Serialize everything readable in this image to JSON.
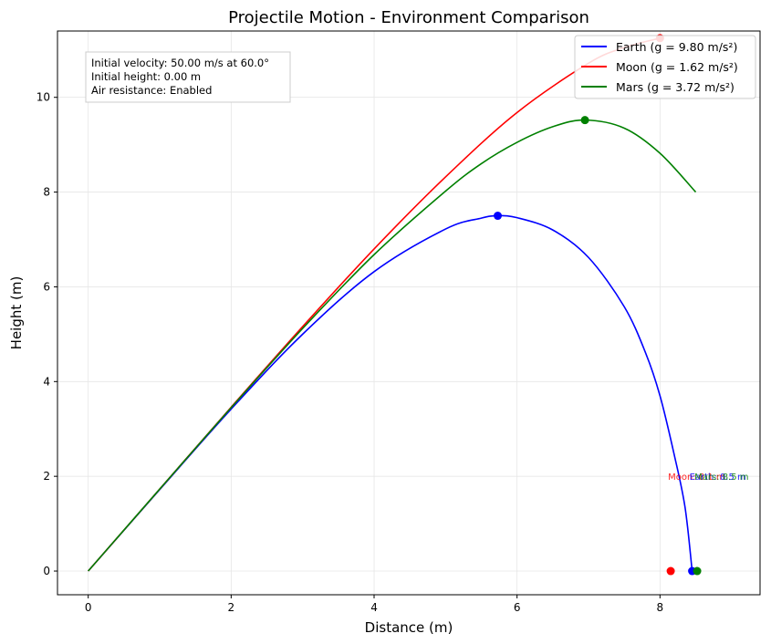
{
  "chart_data": {
    "type": "line",
    "title": "Projectile Motion - Environment Comparison",
    "xlabel": "Distance (m)",
    "ylabel": "Height (m)",
    "xlim": [
      -0.43,
      9.4
    ],
    "ylim": [
      -0.5,
      11.4
    ],
    "xticks": [
      0,
      2,
      4,
      6,
      8
    ],
    "yticks": [
      0,
      2,
      4,
      6,
      8,
      10
    ],
    "grid": true,
    "legend_position": "top-right",
    "info_box": {
      "lines": [
        "Initial velocity: 50.00 m/s at 60.0°",
        "Initial height: 0.00 m",
        "Air resistance: Enabled"
      ]
    },
    "series": [
      {
        "name": "Earth (g = 9.80 m/s²)",
        "color": "#0000ff",
        "points": [
          [
            0,
            0
          ],
          [
            1,
            1.72
          ],
          [
            2,
            3.42
          ],
          [
            3,
            5.0
          ],
          [
            4,
            6.32
          ],
          [
            5,
            7.22
          ],
          [
            5.5,
            7.45
          ],
          [
            5.73,
            7.5
          ],
          [
            6,
            7.46
          ],
          [
            6.5,
            7.2
          ],
          [
            7,
            6.62
          ],
          [
            7.5,
            5.58
          ],
          [
            7.8,
            4.6
          ],
          [
            8.0,
            3.7
          ],
          [
            8.2,
            2.45
          ],
          [
            8.35,
            1.35
          ],
          [
            8.45,
            0.0
          ]
        ],
        "peak": [
          5.73,
          7.5
        ],
        "landing": [
          8.45,
          0.0
        ]
      },
      {
        "name": "Moon (g = 1.62 m/s²)",
        "color": "#ff0000",
        "points": [
          [
            0,
            0
          ],
          [
            1,
            1.73
          ],
          [
            2,
            3.46
          ],
          [
            3,
            5.16
          ],
          [
            4,
            6.8
          ],
          [
            5,
            8.32
          ],
          [
            6,
            9.68
          ],
          [
            7,
            10.72
          ],
          [
            7.5,
            11.05
          ],
          [
            8.0,
            11.25
          ]
        ],
        "peak": [
          8.0,
          11.25
        ],
        "landing": [
          8.15,
          0.0
        ]
      },
      {
        "name": "Mars (g = 3.72 m/s²)",
        "color": "#008000",
        "points": [
          [
            0,
            0
          ],
          [
            1,
            1.73
          ],
          [
            2,
            3.45
          ],
          [
            3,
            5.12
          ],
          [
            4,
            6.68
          ],
          [
            5,
            8.02
          ],
          [
            5.5,
            8.6
          ],
          [
            6,
            9.05
          ],
          [
            6.5,
            9.38
          ],
          [
            6.95,
            9.52
          ],
          [
            7.5,
            9.35
          ],
          [
            8,
            8.82
          ],
          [
            8.5,
            8.0
          ]
        ],
        "peak": [
          6.95,
          9.52
        ],
        "landing": [
          8.52,
          0.0
        ]
      }
    ],
    "landing_labels": [
      {
        "text": "Moon: 8.1 m",
        "color": "#ff0000",
        "x": 8.15,
        "y": 2.0
      },
      {
        "text": "Earth: 8.5 m",
        "color": "#0000ff",
        "x": 8.45,
        "y": 2.0
      },
      {
        "text": "Mars: 8.5 m",
        "color": "#008000",
        "x": 8.52,
        "y": 2.0
      }
    ]
  }
}
